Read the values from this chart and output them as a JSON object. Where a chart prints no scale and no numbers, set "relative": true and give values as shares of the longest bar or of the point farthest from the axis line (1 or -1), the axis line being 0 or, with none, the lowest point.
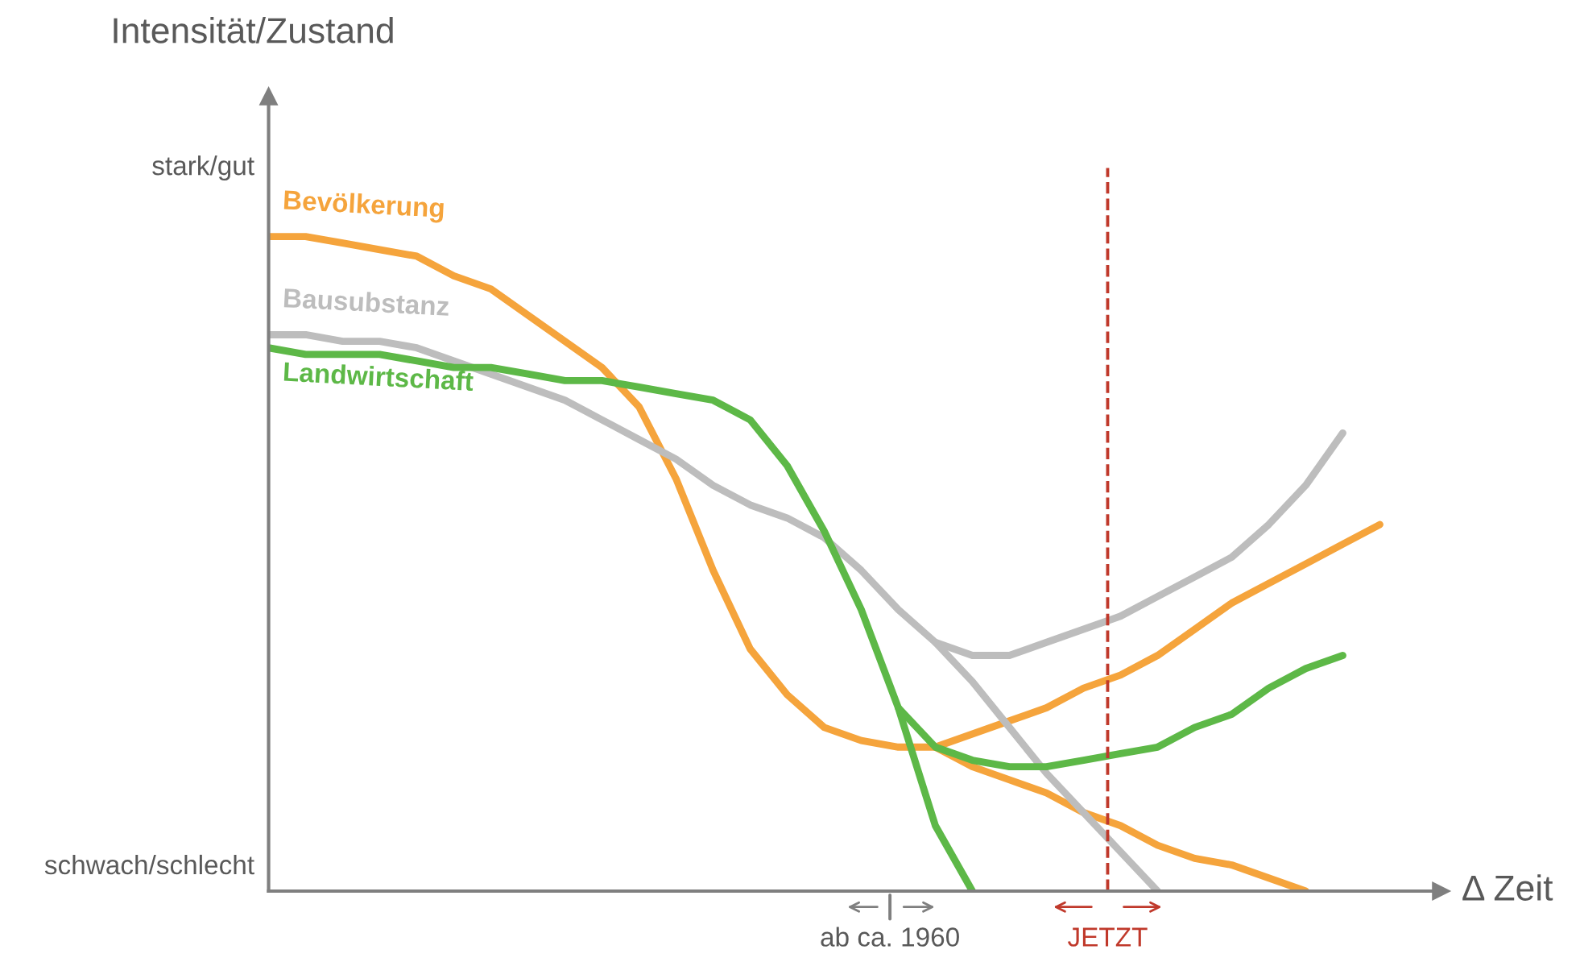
{
  "chart_data": {
    "type": "line",
    "relative": true,
    "xlabel": "Δ Zeit",
    "categories": [
      null,
      null,
      null,
      null,
      null,
      null,
      null,
      null,
      null,
      null,
      null,
      null,
      null,
      null,
      null,
      null,
      null,
      null,
      null,
      null,
      null,
      null,
      null,
      null,
      null,
      null,
      null,
      null,
      null,
      null,
      null
    ],
    "series": [
      {
        "name": "Bevölkerung",
        "color": "#f5a43c",
        "values": [
          1.0,
          1.0,
          0.99,
          0.98,
          0.97,
          0.94,
          0.92,
          0.88,
          0.84,
          0.8,
          0.74,
          0.63,
          0.49,
          0.37,
          0.3,
          0.25,
          0.23,
          0.22,
          0.22,
          0.24,
          0.26,
          0.28,
          0.31,
          0.33,
          0.36,
          0.4,
          0.44,
          0.47,
          0.5,
          0.53,
          0.56
        ]
      },
      {
        "color": "#f5a43c",
        "values": [
          null,
          null,
          null,
          null,
          null,
          null,
          null,
          null,
          null,
          null,
          null,
          null,
          null,
          null,
          null,
          null,
          null,
          null,
          0.22,
          0.19,
          0.17,
          0.15,
          0.12,
          0.1,
          0.07,
          0.05,
          0.04,
          0.02,
          0.0,
          null,
          null
        ]
      },
      {
        "name": "Bausubstanz",
        "color": "#bdbdbd",
        "values": [
          0.85,
          0.85,
          0.84,
          0.84,
          0.83,
          0.81,
          0.79,
          0.77,
          0.75,
          0.72,
          0.69,
          0.66,
          0.62,
          0.59,
          0.57,
          0.54,
          0.49,
          0.43,
          0.38,
          0.36,
          0.36,
          0.38,
          0.4,
          0.42,
          0.45,
          0.48,
          0.51,
          0.56,
          0.62,
          0.7,
          null
        ]
      },
      {
        "color": "#bdbdbd",
        "values": [
          null,
          null,
          null,
          null,
          null,
          null,
          null,
          null,
          null,
          null,
          null,
          null,
          null,
          null,
          null,
          null,
          null,
          null,
          0.38,
          0.32,
          0.25,
          0.18,
          0.12,
          0.06,
          0.0,
          null,
          null,
          null,
          null,
          null,
          null
        ]
      },
      {
        "name": "Landwirtschaft",
        "color": "#5db847",
        "values": [
          0.83,
          0.82,
          0.82,
          0.82,
          0.81,
          0.8,
          0.8,
          0.79,
          0.78,
          0.78,
          0.77,
          0.76,
          0.75,
          0.72,
          0.65,
          0.55,
          0.43,
          0.28,
          0.22,
          0.2,
          0.19,
          0.19,
          0.2,
          0.21,
          0.22,
          0.25,
          0.27,
          0.31,
          0.34,
          0.36,
          null
        ]
      },
      {
        "color": "#5db847",
        "values": [
          null,
          null,
          null,
          null,
          null,
          null,
          null,
          null,
          null,
          null,
          null,
          null,
          null,
          null,
          null,
          null,
          null,
          0.28,
          0.1,
          0.0,
          null,
          null,
          null,
          null,
          null,
          null,
          null,
          null,
          null,
          null,
          null
        ]
      }
    ],
    "annotations": [
      "Intensität/Zustand",
      "stark/gut",
      "schwach/schlecht",
      "ab ca. 1960",
      "JETZT"
    ],
    "line_style": "solid"
  }
}
